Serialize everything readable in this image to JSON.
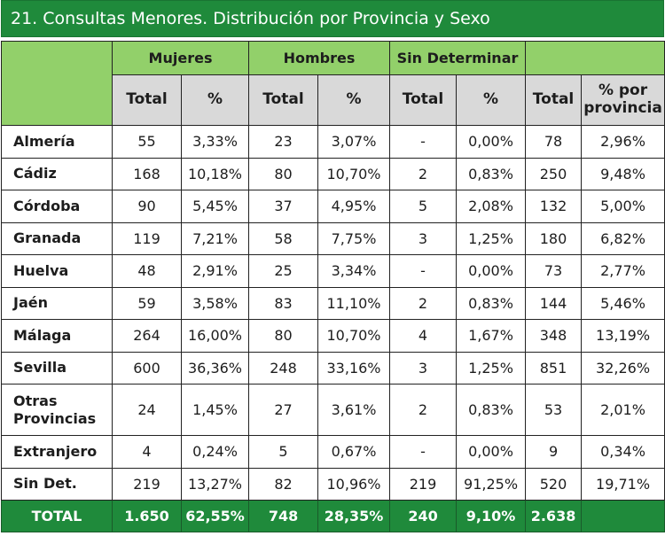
{
  "title": "21. Consultas Menores. Distribución por Provincia y Sexo",
  "groups": {
    "mujeres": "Mujeres",
    "hombres": "Hombres",
    "sin_determinar": "Sin Determinar"
  },
  "subheaders": {
    "total": "Total",
    "pct": "%",
    "pct_provincia_line1": "% por",
    "pct_provincia_line2": "provincia"
  },
  "rows": [
    {
      "name_line1": "Almería",
      "name_line2": "",
      "m_total": "55",
      "m_pct": "3,33%",
      "h_total": "23",
      "h_pct": "3,07%",
      "s_total": "-",
      "s_pct": "0,00%",
      "total": "78",
      "pct_prov": "2,96%"
    },
    {
      "name_line1": "Cádiz",
      "name_line2": "",
      "m_total": "168",
      "m_pct": "10,18%",
      "h_total": "80",
      "h_pct": "10,70%",
      "s_total": "2",
      "s_pct": "0,83%",
      "total": "250",
      "pct_prov": "9,48%"
    },
    {
      "name_line1": "Córdoba",
      "name_line2": "",
      "m_total": "90",
      "m_pct": "5,45%",
      "h_total": "37",
      "h_pct": "4,95%",
      "s_total": "5",
      "s_pct": "2,08%",
      "total": "132",
      "pct_prov": "5,00%"
    },
    {
      "name_line1": "Granada",
      "name_line2": "",
      "m_total": "119",
      "m_pct": "7,21%",
      "h_total": "58",
      "h_pct": "7,75%",
      "s_total": "3",
      "s_pct": "1,25%",
      "total": "180",
      "pct_prov": "6,82%"
    },
    {
      "name_line1": "Huelva",
      "name_line2": "",
      "m_total": "48",
      "m_pct": "2,91%",
      "h_total": "25",
      "h_pct": "3,34%",
      "s_total": "-",
      "s_pct": "0,00%",
      "total": "73",
      "pct_prov": "2,77%"
    },
    {
      "name_line1": "Jaén",
      "name_line2": "",
      "m_total": "59",
      "m_pct": "3,58%",
      "h_total": "83",
      "h_pct": "11,10%",
      "s_total": "2",
      "s_pct": "0,83%",
      "total": "144",
      "pct_prov": "5,46%"
    },
    {
      "name_line1": "Málaga",
      "name_line2": "",
      "m_total": "264",
      "m_pct": "16,00%",
      "h_total": "80",
      "h_pct": "10,70%",
      "s_total": "4",
      "s_pct": "1,67%",
      "total": "348",
      "pct_prov": "13,19%"
    },
    {
      "name_line1": "Sevilla",
      "name_line2": "",
      "m_total": "600",
      "m_pct": "36,36%",
      "h_total": "248",
      "h_pct": "33,16%",
      "s_total": "3",
      "s_pct": "1,25%",
      "total": "851",
      "pct_prov": "32,26%"
    },
    {
      "name_line1": "Otras",
      "name_line2": "Provincias",
      "m_total": "24",
      "m_pct": "1,45%",
      "h_total": "27",
      "h_pct": "3,61%",
      "s_total": "2",
      "s_pct": "0,83%",
      "total": "53",
      "pct_prov": "2,01%"
    },
    {
      "name_line1": "Extranjero",
      "name_line2": "",
      "m_total": "4",
      "m_pct": "0,24%",
      "h_total": "5",
      "h_pct": "0,67%",
      "s_total": "-",
      "s_pct": "0,00%",
      "total": "9",
      "pct_prov": "0,34%"
    },
    {
      "name_line1": "Sin Det.",
      "name_line2": "",
      "m_total": "219",
      "m_pct": "13,27%",
      "h_total": "82",
      "h_pct": "10,96%",
      "s_total": "219",
      "s_pct": "91,25%",
      "total": "520",
      "pct_prov": "19,71%"
    }
  ],
  "total_row": {
    "label": "TOTAL",
    "m_total": "1.650",
    "m_pct": "62,55%",
    "h_total": "748",
    "h_pct": "28,35%",
    "s_total": "240",
    "s_pct": "9,10%",
    "total": "2.638",
    "pct_prov": ""
  },
  "colors": {
    "title_bg": "#1f8a3b",
    "group_header_bg": "#92d06a",
    "sub_header_bg": "#d9d9d9",
    "total_row_bg": "#1f8a3b"
  }
}
